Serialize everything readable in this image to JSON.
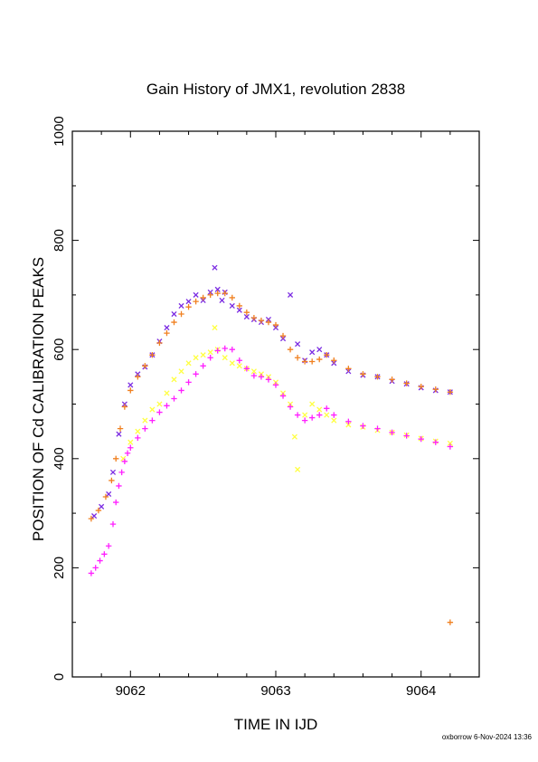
{
  "chart_data": {
    "type": "scatter",
    "title": "Gain History of JMX1, revolution 2838",
    "xlabel": "TIME IN IJD",
    "ylabel": "POSITION OF Cd CALIBRATION PEAKS",
    "xlim": [
      9061.6,
      9064.4
    ],
    "ylim": [
      0,
      1000
    ],
    "x_ticks": [
      "9062",
      "9063",
      "9064"
    ],
    "x_tick_values": [
      9062,
      9063,
      9064
    ],
    "y_ticks": [
      "0",
      "200",
      "400",
      "600",
      "800",
      "1000"
    ],
    "y_tick_values": [
      0,
      200,
      400,
      600,
      800,
      1000
    ],
    "grid": false,
    "series": [
      {
        "marker": "x",
        "color": "#7b2be2",
        "x": [
          9061.75,
          9061.8,
          9061.85,
          9061.88,
          9061.92,
          9061.96,
          9062.0,
          9062.05,
          9062.1,
          9062.15,
          9062.2,
          9062.25,
          9062.3,
          9062.35,
          9062.4,
          9062.45,
          9062.5,
          9062.55,
          9062.58,
          9062.6,
          9062.63,
          9062.65,
          9062.7,
          9062.75,
          9062.8,
          9062.85,
          9062.9,
          9062.95,
          9063.0,
          9063.05,
          9063.1,
          9063.15,
          9063.2,
          9063.25,
          9063.3,
          9063.35,
          9063.4,
          9063.5,
          9063.6,
          9063.7,
          9063.8,
          9063.9,
          9064.0,
          9064.1,
          9064.2
        ],
        "y": [
          295,
          312,
          335,
          375,
          445,
          500,
          535,
          555,
          568,
          590,
          615,
          640,
          665,
          680,
          688,
          700,
          690,
          705,
          750,
          710,
          690,
          705,
          680,
          672,
          660,
          655,
          650,
          655,
          640,
          620,
          700,
          610,
          580,
          595,
          600,
          590,
          575,
          560,
          553,
          550,
          542,
          537,
          530,
          525,
          522
        ]
      },
      {
        "marker": "+",
        "color": "#f08020",
        "x": [
          9061.73,
          9061.78,
          9061.83,
          9061.87,
          9061.9,
          9061.93,
          9061.96,
          9062.0,
          9062.05,
          9062.1,
          9062.15,
          9062.2,
          9062.25,
          9062.3,
          9062.35,
          9062.4,
          9062.45,
          9062.5,
          9062.55,
          9062.6,
          9062.65,
          9062.7,
          9062.75,
          9062.8,
          9062.85,
          9062.9,
          9062.95,
          9063.0,
          9063.05,
          9063.1,
          9063.15,
          9063.2,
          9063.25,
          9063.3,
          9063.35,
          9063.4,
          9063.5,
          9063.6,
          9063.7,
          9063.8,
          9063.9,
          9064.0,
          9064.1,
          9064.2,
          9064.2
        ],
        "y": [
          290,
          305,
          330,
          360,
          400,
          455,
          495,
          525,
          550,
          570,
          590,
          612,
          630,
          650,
          665,
          678,
          688,
          695,
          700,
          703,
          703,
          695,
          680,
          668,
          658,
          653,
          650,
          645,
          625,
          600,
          585,
          578,
          578,
          582,
          590,
          580,
          565,
          555,
          550,
          545,
          538,
          532,
          527,
          522,
          100
        ]
      },
      {
        "marker": "x",
        "color": "#ffff40",
        "x": [
          9061.95,
          9062.0,
          9062.05,
          9062.1,
          9062.15,
          9062.2,
          9062.25,
          9062.3,
          9062.35,
          9062.4,
          9062.45,
          9062.5,
          9062.55,
          9062.58,
          9062.6,
          9062.65,
          9062.7,
          9062.75,
          9062.8,
          9062.85,
          9062.9,
          9062.95,
          9063.0,
          9063.05,
          9063.1,
          9063.13,
          9063.15,
          9063.2,
          9063.25,
          9063.3,
          9063.35,
          9063.4,
          9063.5,
          9063.6,
          9063.7,
          9063.8,
          9063.9,
          9064.0,
          9064.1,
          9064.2
        ],
        "y": [
          400,
          430,
          450,
          470,
          490,
          500,
          520,
          545,
          560,
          575,
          585,
          590,
          595,
          640,
          600,
          585,
          575,
          570,
          565,
          560,
          555,
          550,
          540,
          520,
          500,
          440,
          380,
          480,
          500,
          490,
          480,
          470,
          462,
          458,
          452,
          448,
          443,
          437,
          432,
          428
        ]
      },
      {
        "marker": "+",
        "color": "#ff20ff",
        "x": [
          9061.73,
          9061.76,
          9061.79,
          9061.82,
          9061.85,
          9061.88,
          9061.9,
          9061.92,
          9061.94,
          9061.96,
          9061.98,
          9062.0,
          9062.05,
          9062.1,
          9062.15,
          9062.2,
          9062.25,
          9062.3,
          9062.35,
          9062.4,
          9062.45,
          9062.5,
          9062.55,
          9062.6,
          9062.65,
          9062.7,
          9062.75,
          9062.8,
          9062.85,
          9062.9,
          9062.95,
          9063.0,
          9063.05,
          9063.1,
          9063.15,
          9063.2,
          9063.25,
          9063.3,
          9063.35,
          9063.4,
          9063.5,
          9063.6,
          9063.7,
          9063.8,
          9063.9,
          9064.0,
          9064.1,
          9064.2
        ],
        "y": [
          190,
          200,
          213,
          225,
          240,
          280,
          320,
          350,
          375,
          395,
          410,
          420,
          438,
          455,
          470,
          485,
          497,
          510,
          525,
          540,
          555,
          570,
          585,
          598,
          602,
          600,
          580,
          565,
          552,
          550,
          545,
          535,
          515,
          495,
          480,
          470,
          475,
          480,
          492,
          480,
          468,
          460,
          455,
          448,
          442,
          436,
          430,
          422
        ]
      }
    ]
  },
  "footer": {
    "credit": "oxborrow  6-Nov-2024 13:36"
  }
}
